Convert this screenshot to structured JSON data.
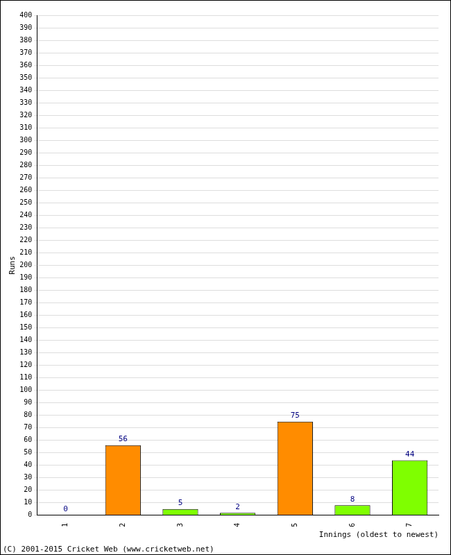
{
  "chart_data": {
    "type": "bar",
    "categories": [
      "1",
      "2",
      "3",
      "4",
      "5",
      "6",
      "7"
    ],
    "values": [
      0,
      56,
      5,
      2,
      75,
      8,
      44
    ],
    "colors": [
      "#7fff00",
      "#ff8c00",
      "#7fff00",
      "#7fff00",
      "#ff8c00",
      "#7fff00",
      "#7fff00"
    ],
    "x_label": "Innings (oldest to newest)",
    "y_label": "Runs",
    "annotations": [
      "(C) 2001-2015 Cricket Web (www.cricketweb.net)"
    ],
    "ylim": [
      0,
      400
    ],
    "yticks": [
      0,
      10,
      20,
      30,
      40,
      50,
      60,
      70,
      80,
      90,
      100,
      110,
      120,
      130,
      140,
      150,
      160,
      170,
      180,
      190,
      200,
      210,
      220,
      230,
      240,
      250,
      260,
      270,
      280,
      290,
      300,
      310,
      320,
      330,
      340,
      350,
      360,
      370,
      380,
      390,
      400
    ],
    "grid": true,
    "data_labels": true
  }
}
